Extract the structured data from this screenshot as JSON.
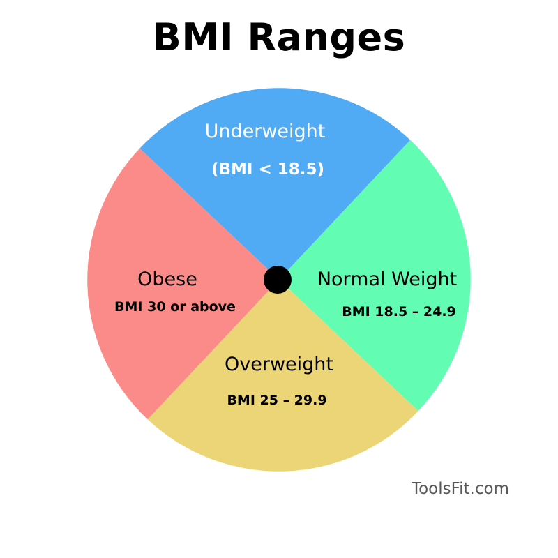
{
  "title": "BMI Ranges",
  "watermark": "ToolsFit.com",
  "colors": {
    "underweight": "#51ABF4",
    "normal": "#62FDB3",
    "overweight": "#ECD576",
    "obese": "#FB8B89",
    "center": "#000000",
    "text_dark": "#000000",
    "text_light": "#ffffff"
  },
  "segments": [
    {
      "key": "underweight",
      "label": "Underweight",
      "range": "(BMI < 18.5)"
    },
    {
      "key": "normal",
      "label": "Normal Weight",
      "range": "BMI 18.5 – 24.9"
    },
    {
      "key": "overweight",
      "label": "Overweight",
      "range": "BMI 25 – 29.9"
    },
    {
      "key": "obese",
      "label": "Obese",
      "range": "BMI 30 or above"
    }
  ]
}
